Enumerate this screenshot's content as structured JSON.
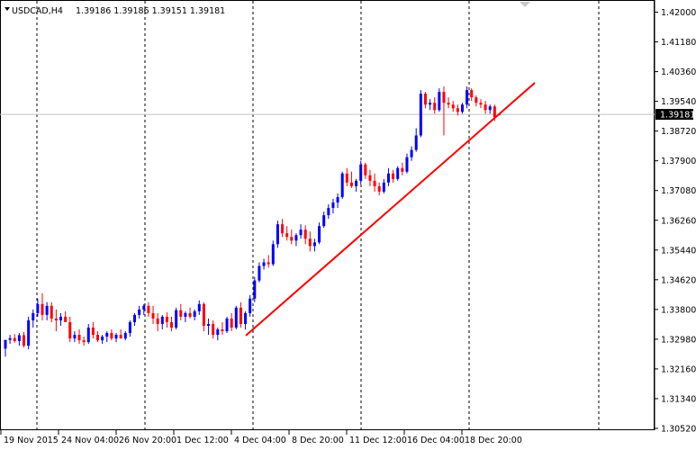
{
  "header": {
    "symbol": "USDCAD,H4",
    "ohlc": "1.39186 1.39186 1.39151 1.39181"
  },
  "price_scale": {
    "labels": [
      "1.42000",
      "1.41180",
      "1.40360",
      "1.39540",
      "1.38720",
      "1.37900",
      "1.37080",
      "1.36260",
      "1.35440",
      "1.34620",
      "1.33800",
      "1.32980",
      "1.32160",
      "1.31340",
      "1.30520"
    ],
    "current_price": "1.39181"
  },
  "time_scale": {
    "labels": [
      "19 Nov 2015",
      "24 Nov 04:00",
      "26 Nov 20:00",
      "1 Dec 12:00",
      "4 Dec 04:00",
      "8 Dec 20:00",
      "11 Dec 12:00",
      "16 Dec 04:00",
      "18 Dec 20:00"
    ]
  },
  "colors": {
    "bull": "#0000ff",
    "bear": "#ff0000",
    "trendline": "#ff0000",
    "grid": "#000000",
    "axis": "#000000",
    "price_line": "#c0c0c0",
    "price_badge_bg": "#000000",
    "price_badge_text": "#ffffff"
  },
  "icons": {
    "symbol_menu": "triangle-down-icon",
    "chart_shift": "triangle-down-icon"
  },
  "chart_data": {
    "type": "candlestick",
    "symbol": "USDCAD",
    "timeframe": "H4",
    "ylim": [
      1.3052,
      1.4232
    ],
    "price_ticks": [
      1.42,
      1.4118,
      1.4036,
      1.3954,
      1.3872,
      1.379,
      1.3708,
      1.3626,
      1.3544,
      1.3462,
      1.338,
      1.3298,
      1.3216,
      1.3134,
      1.3052
    ],
    "current_price": 1.39181,
    "grid": "vertical-dotted",
    "candles": [
      [
        1.3272,
        1.3296,
        1.325,
        1.3296
      ],
      [
        1.3296,
        1.331,
        1.3285,
        1.3301
      ],
      [
        1.3301,
        1.3312,
        1.3288,
        1.3293
      ],
      [
        1.3293,
        1.3315,
        1.328,
        1.3309
      ],
      [
        1.3309,
        1.3318,
        1.3275,
        1.328
      ],
      [
        1.328,
        1.336,
        1.327,
        1.335
      ],
      [
        1.335,
        1.338,
        1.333,
        1.337
      ],
      [
        1.337,
        1.341,
        1.336,
        1.3395
      ],
      [
        1.3395,
        1.3425,
        1.335,
        1.3365
      ],
      [
        1.3365,
        1.34,
        1.335,
        1.339
      ],
      [
        1.339,
        1.34,
        1.3345,
        1.3355
      ],
      [
        1.3355,
        1.338,
        1.332,
        1.335
      ],
      [
        1.335,
        1.337,
        1.3335,
        1.336
      ],
      [
        1.336,
        1.3375,
        1.3345,
        1.3345
      ],
      [
        1.3345,
        1.336,
        1.329,
        1.33
      ],
      [
        1.33,
        1.332,
        1.329,
        1.331
      ],
      [
        1.331,
        1.3325,
        1.3285,
        1.3295
      ],
      [
        1.3295,
        1.3305,
        1.328,
        1.329
      ],
      [
        1.329,
        1.334,
        1.3285,
        1.333
      ],
      [
        1.333,
        1.3345,
        1.33,
        1.331
      ],
      [
        1.331,
        1.332,
        1.329,
        1.3295
      ],
      [
        1.3295,
        1.331,
        1.3285,
        1.3305
      ],
      [
        1.3305,
        1.332,
        1.329,
        1.3315
      ],
      [
        1.3315,
        1.3325,
        1.3295,
        1.33
      ],
      [
        1.33,
        1.3315,
        1.329,
        1.331
      ],
      [
        1.331,
        1.3325,
        1.33,
        1.33
      ],
      [
        1.33,
        1.332,
        1.3295,
        1.3315
      ],
      [
        1.3315,
        1.335,
        1.3305,
        1.3345
      ],
      [
        1.3345,
        1.337,
        1.3335,
        1.3365
      ],
      [
        1.3365,
        1.339,
        1.3355,
        1.338
      ],
      [
        1.338,
        1.3395,
        1.3365,
        1.339
      ],
      [
        1.339,
        1.34,
        1.336,
        1.337
      ],
      [
        1.337,
        1.339,
        1.334,
        1.3355
      ],
      [
        1.3355,
        1.337,
        1.332,
        1.334
      ],
      [
        1.334,
        1.3365,
        1.3325,
        1.336
      ],
      [
        1.336,
        1.3372,
        1.333,
        1.3345
      ],
      [
        1.3345,
        1.336,
        1.332,
        1.333
      ],
      [
        1.333,
        1.3385,
        1.3325,
        1.3378
      ],
      [
        1.3378,
        1.3395,
        1.335,
        1.336
      ],
      [
        1.336,
        1.3375,
        1.3345,
        1.337
      ],
      [
        1.337,
        1.3385,
        1.3355,
        1.336
      ],
      [
        1.336,
        1.338,
        1.335,
        1.3375
      ],
      [
        1.3375,
        1.3405,
        1.3365,
        1.3395
      ],
      [
        1.3395,
        1.34,
        1.332,
        1.3335
      ],
      [
        1.3335,
        1.3355,
        1.331,
        1.334
      ],
      [
        1.334,
        1.335,
        1.33,
        1.331
      ],
      [
        1.331,
        1.333,
        1.3295,
        1.3325
      ],
      [
        1.3325,
        1.3345,
        1.331,
        1.332
      ],
      [
        1.332,
        1.336,
        1.3315,
        1.3355
      ],
      [
        1.3355,
        1.337,
        1.332,
        1.333
      ],
      [
        1.333,
        1.339,
        1.3325,
        1.3385
      ],
      [
        1.3385,
        1.34,
        1.333,
        1.334
      ],
      [
        1.334,
        1.3375,
        1.3325,
        1.337
      ],
      [
        1.337,
        1.342,
        1.336,
        1.341
      ],
      [
        1.341,
        1.347,
        1.34,
        1.346
      ],
      [
        1.346,
        1.351,
        1.3455,
        1.35
      ],
      [
        1.35,
        1.352,
        1.349,
        1.351
      ],
      [
        1.351,
        1.353,
        1.3495,
        1.3505
      ],
      [
        1.3505,
        1.357,
        1.35,
        1.356
      ],
      [
        1.356,
        1.3625,
        1.355,
        1.3615
      ],
      [
        1.3615,
        1.363,
        1.358,
        1.359
      ],
      [
        1.359,
        1.361,
        1.357,
        1.358
      ],
      [
        1.358,
        1.36,
        1.356,
        1.357
      ],
      [
        1.357,
        1.359,
        1.3555,
        1.3585
      ],
      [
        1.3585,
        1.3615,
        1.3575,
        1.36
      ],
      [
        1.36,
        1.3612,
        1.356,
        1.3575
      ],
      [
        1.3575,
        1.3595,
        1.354,
        1.3555
      ],
      [
        1.3555,
        1.3575,
        1.354,
        1.3565
      ],
      [
        1.3565,
        1.362,
        1.356,
        1.361
      ],
      [
        1.361,
        1.365,
        1.3605,
        1.364
      ],
      [
        1.364,
        1.367,
        1.363,
        1.366
      ],
      [
        1.366,
        1.3685,
        1.3645,
        1.3675
      ],
      [
        1.3675,
        1.37,
        1.366,
        1.369
      ],
      [
        1.369,
        1.376,
        1.3685,
        1.3755
      ],
      [
        1.3755,
        1.377,
        1.372,
        1.373
      ],
      [
        1.373,
        1.376,
        1.3715,
        1.372
      ],
      [
        1.372,
        1.374,
        1.3705,
        1.3735
      ],
      [
        1.3735,
        1.379,
        1.3725,
        1.378
      ],
      [
        1.378,
        1.3785,
        1.374,
        1.375
      ],
      [
        1.375,
        1.3765,
        1.372,
        1.3735
      ],
      [
        1.3735,
        1.3755,
        1.3705,
        1.372
      ],
      [
        1.372,
        1.373,
        1.3695,
        1.3705
      ],
      [
        1.3705,
        1.374,
        1.37,
        1.373
      ],
      [
        1.373,
        1.377,
        1.372,
        1.3755
      ],
      [
        1.3755,
        1.3765,
        1.373,
        1.374
      ],
      [
        1.374,
        1.3775,
        1.3735,
        1.377
      ],
      [
        1.377,
        1.3785,
        1.375,
        1.376
      ],
      [
        1.376,
        1.381,
        1.3755,
        1.38
      ],
      [
        1.38,
        1.383,
        1.379,
        1.382
      ],
      [
        1.382,
        1.388,
        1.3815,
        1.386
      ],
      [
        1.386,
        1.3985,
        1.3855,
        1.3975
      ],
      [
        1.3975,
        1.398,
        1.3935,
        1.3945
      ],
      [
        1.3945,
        1.396,
        1.393,
        1.395
      ],
      [
        1.395,
        1.3965,
        1.392,
        1.393
      ],
      [
        1.393,
        1.399,
        1.3925,
        1.398
      ],
      [
        1.398,
        1.3995,
        1.386,
        1.395
      ],
      [
        1.395,
        1.3965,
        1.3935,
        1.3945
      ],
      [
        1.3945,
        1.3955,
        1.3925,
        1.3935
      ],
      [
        1.3935,
        1.3945,
        1.3915,
        1.3925
      ],
      [
        1.3925,
        1.395,
        1.392,
        1.3945
      ],
      [
        1.3945,
        1.3995,
        1.3935,
        1.3985
      ],
      [
        1.3985,
        1.399,
        1.3955,
        1.3965
      ],
      [
        1.3965,
        1.397,
        1.394,
        1.395
      ],
      [
        1.395,
        1.396,
        1.3935,
        1.3945
      ],
      [
        1.3945,
        1.3955,
        1.392,
        1.393
      ],
      [
        1.393,
        1.3945,
        1.392,
        1.394
      ],
      [
        1.394,
        1.3945,
        1.39,
        1.391
      ],
      [
        1.39186,
        1.39186,
        1.39151,
        1.39181
      ]
    ],
    "trendline": {
      "start": {
        "label": "4 Dec 04:00",
        "price": 1.3308
      },
      "end": {
        "label": "18 Dec 20:00",
        "price": 1.4005
      }
    }
  }
}
